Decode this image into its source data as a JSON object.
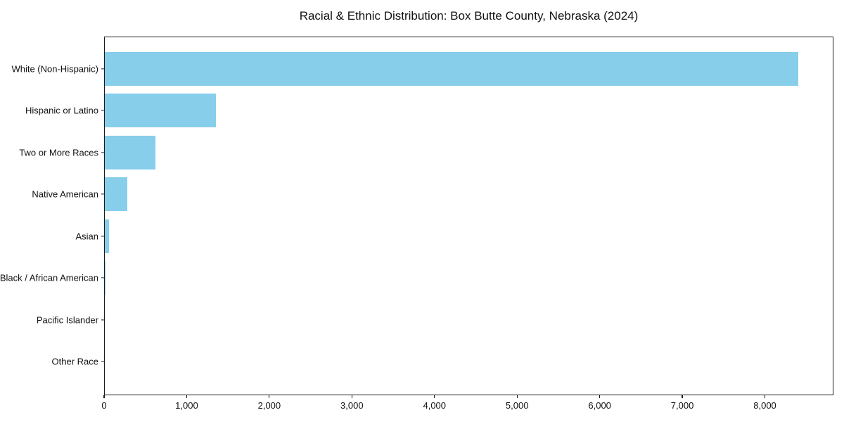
{
  "chart_data": {
    "type": "bar",
    "orientation": "horizontal",
    "title": "Racial & Ethnic Distribution: Box Butte County, Nebraska (2024)",
    "categories": [
      "White (Non-Hispanic)",
      "Hispanic or Latino",
      "Two or More Races",
      "Native American",
      "Asian",
      "Black / African American",
      "Pacific Islander",
      "Other Race"
    ],
    "values": [
      8410,
      1350,
      610,
      270,
      52,
      8,
      0,
      0
    ],
    "xlabel": "",
    "ylabel": "",
    "xlim": [
      0,
      8830
    ],
    "xticks": [
      0,
      1000,
      2000,
      3000,
      4000,
      5000,
      6000,
      7000,
      8000
    ],
    "xtick_labels": [
      "0",
      "1,000",
      "2,000",
      "3,000",
      "4,000",
      "5,000",
      "6,000",
      "7,000",
      "8,000"
    ],
    "bar_color": "#87CEEB",
    "axis_color": "#1a1a1a",
    "text_color": "#111111",
    "background_color": "#ffffff",
    "grid": false,
    "legend": null
  }
}
